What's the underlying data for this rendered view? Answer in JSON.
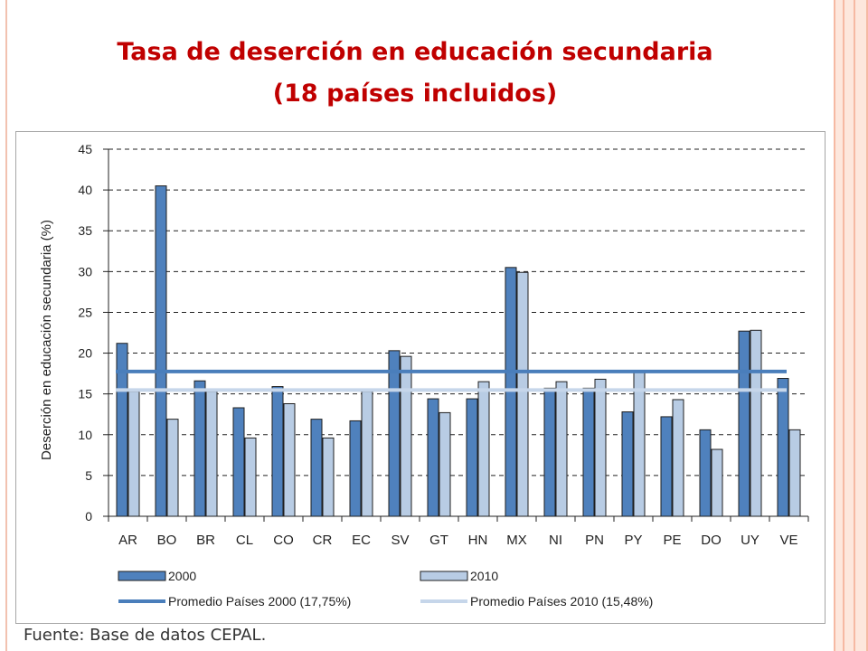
{
  "slide": {
    "title_line1": "Tasa de deserción en educación secundaria",
    "title_line2": "(18 países incluidos)",
    "source": "Fuente: Base de datos CEPAL."
  },
  "colors": {
    "title": "#c00000",
    "series_2000": "#4f81bd",
    "series_2010": "#b8cce4",
    "avg_2000": "#4a7ebb",
    "avg_2010": "#c6d6ea"
  },
  "chart_data": {
    "type": "bar",
    "title": "",
    "xlabel": "",
    "ylabel": "Deserción en educación secundaria (%)",
    "ylim": [
      0,
      45
    ],
    "yticks": [
      0,
      5,
      10,
      15,
      20,
      25,
      30,
      35,
      40,
      45
    ],
    "grid": "horizontal dashed",
    "legend_position": "bottom",
    "categories": [
      "AR",
      "BO",
      "BR",
      "CL",
      "CO",
      "CR",
      "EC",
      "SV",
      "GT",
      "HN",
      "MX",
      "NI",
      "PN",
      "PY",
      "PE",
      "DO",
      "UY",
      "VE"
    ],
    "series": [
      {
        "name": "2000",
        "values": [
          21.2,
          40.5,
          16.6,
          13.3,
          15.9,
          11.9,
          11.7,
          20.3,
          14.4,
          14.4,
          30.5,
          15.7,
          15.7,
          12.8,
          12.2,
          10.6,
          22.7,
          16.9
        ]
      },
      {
        "name": "2010",
        "values": [
          15.3,
          11.9,
          15.3,
          9.6,
          13.8,
          9.6,
          15.3,
          19.6,
          12.7,
          16.5,
          29.9,
          16.5,
          16.8,
          17.7,
          14.3,
          8.2,
          22.8,
          10.6
        ]
      }
    ],
    "reference_lines": [
      {
        "name": "Promedio Países 2000 (17,75%)",
        "value": 17.75
      },
      {
        "name": "Promedio Países 2010 (15,48%)",
        "value": 15.48
      }
    ]
  }
}
